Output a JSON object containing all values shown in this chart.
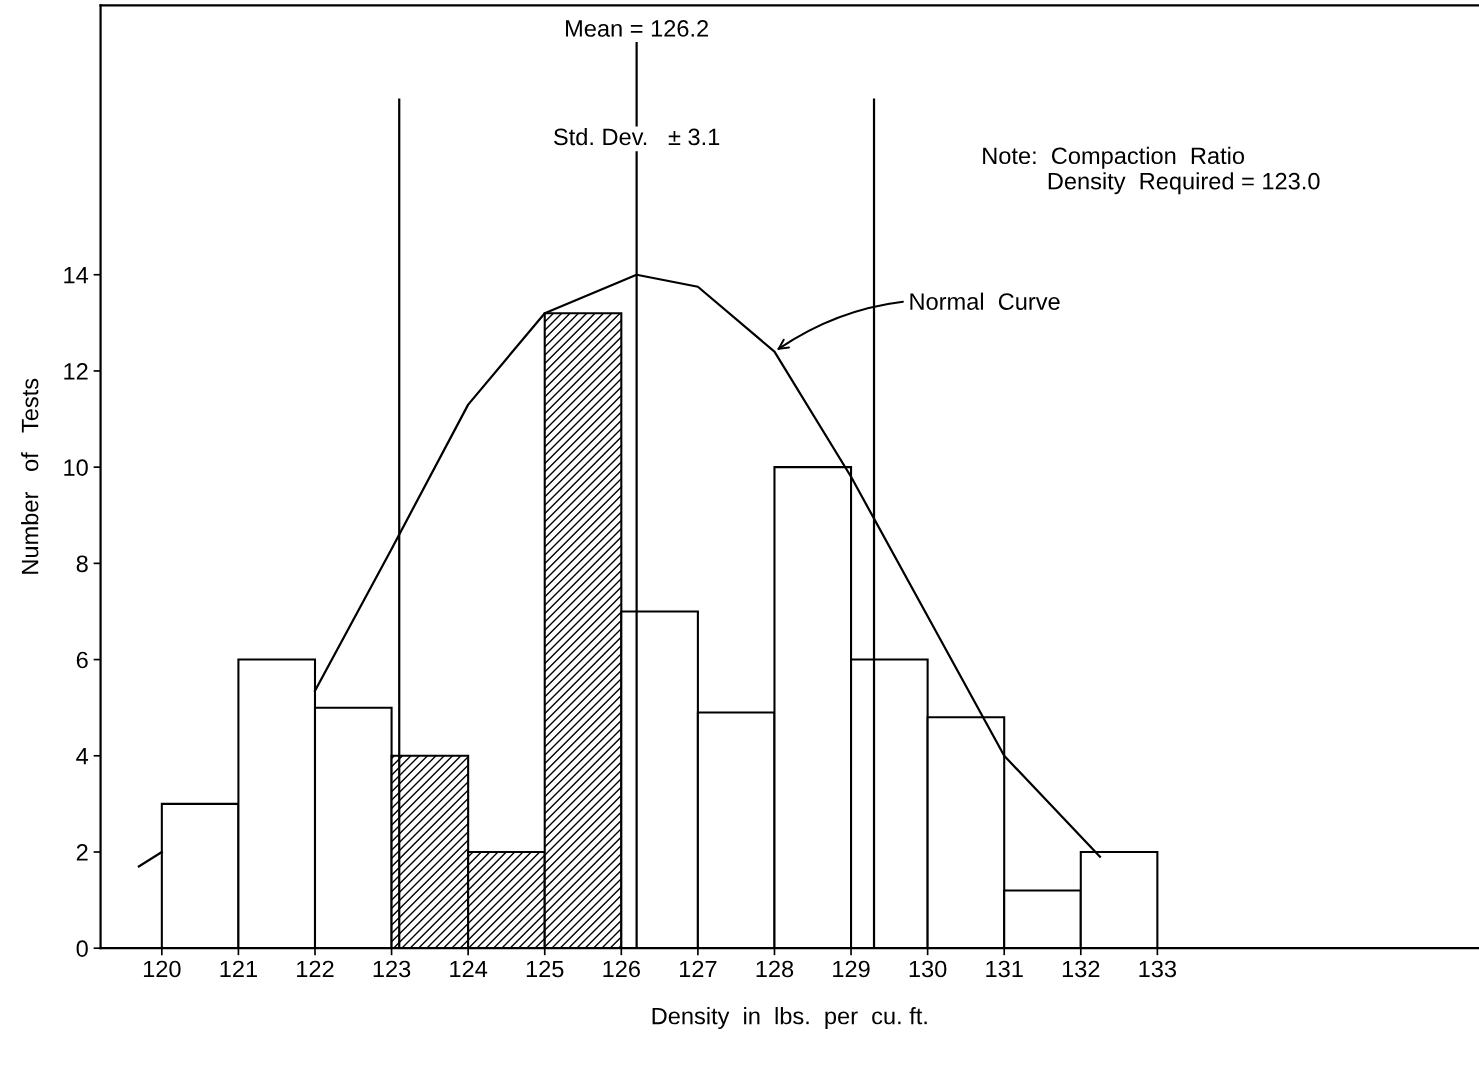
{
  "chart_data": {
    "type": "histogram",
    "xlabel": "Density  in  lbs.  per  cu. ft.",
    "ylabel": "Number   of   Tests",
    "bins": [
      120,
      121,
      122,
      123,
      124,
      125,
      126,
      127,
      128,
      129,
      130,
      131,
      132,
      133
    ],
    "values": [
      3,
      6,
      5,
      4,
      2,
      13.2,
      7,
      4.9,
      10,
      6,
      4.8,
      1.2,
      2
    ],
    "colors": [
      "#ffffff",
      "#ffffff",
      "#ffffff",
      "#000000",
      "#000000",
      "#000000",
      "#ffffff",
      "#ffffff",
      "#ffffff",
      "#ffffff",
      "#ffffff",
      "#ffffff",
      "#ffffff"
    ],
    "series": [
      {
        "type": "line",
        "color": "#000000",
        "x": [
          119.7,
          120,
          121.95,
          122,
          123,
          124,
          125,
          126.2,
          127,
          128,
          129,
          130,
          131,
          132.25
        ],
        "values": [
          1.7,
          2.0,
          null,
          5.35,
          8.3,
          11.3,
          13.2,
          14,
          13.75,
          12.4,
          9.8,
          6.9,
          4.0,
          1.9
        ]
      }
    ],
    "ref_lines": [
      {
        "axis": "x",
        "value": 123.1,
        "color": "#000000"
      },
      {
        "axis": "x",
        "value": 126.2,
        "label": "Mean = 126.2",
        "color": "#000000"
      },
      {
        "axis": "x",
        "value": 129.3,
        "color": "#000000"
      }
    ],
    "annotations": [
      "Std. Dev.   ± 3.1",
      "Note:  Compaction  Ratio\n          Density  Required = 123.0",
      {
        "text": "Normal  Curve",
        "x": 128,
        "y": 12.4
      }
    ],
    "xlim": [
      119.2,
      137.2
    ],
    "ylim": [
      0,
      19.6
    ],
    "xticks": [
      120,
      121,
      122,
      123,
      124,
      125,
      126,
      127,
      128,
      129,
      130,
      131,
      132,
      133
    ],
    "yticks": [
      0,
      2,
      4,
      6,
      8,
      10,
      12,
      14
    ],
    "grid": false,
    "line_style": "solid",
    "marker": "none"
  }
}
